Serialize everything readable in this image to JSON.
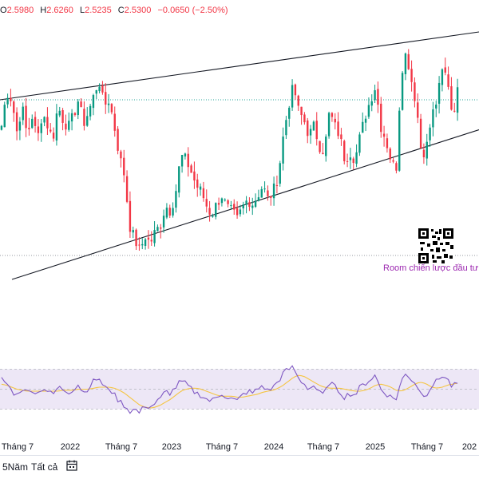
{
  "legend": {
    "o_label": "O",
    "o_value": "2.5980",
    "h_label": "H",
    "h_value": "2.6260",
    "l_label": "L",
    "l_value": "2.5235",
    "c_label": "C",
    "c_value": "2.5300",
    "change": "−0.0650 (−2.50%)"
  },
  "annotation": {
    "room_text": "Room chiến lược đầu tư hà"
  },
  "toolbar": {
    "range_5y": "5Năm",
    "range_all": "Tất cả",
    "calendar_icon": "calendar-icon"
  },
  "colors": {
    "up": "#089981",
    "down": "#f23645",
    "rsi": "#7e57c2",
    "rsi_ma": "#f5c542",
    "band": "#ede7f6",
    "dotted": "#26a69a"
  },
  "chart_data": {
    "type": "candlestick",
    "ylim": [
      1.7,
      3.0
    ],
    "rsi_ylim": [
      20,
      80
    ],
    "x_ticks": [
      "Tháng 7",
      "2022",
      "Tháng 7",
      "2023",
      "Tháng 7",
      "2024",
      "Tháng 7",
      "2025",
      "Tháng 7",
      "202"
    ],
    "price_path": [
      2.45,
      2.62,
      2.58,
      2.42,
      2.55,
      2.4,
      2.5,
      2.38,
      2.52,
      2.45,
      2.38,
      2.55,
      2.48,
      2.44,
      2.5,
      2.58,
      2.46,
      2.52,
      2.6,
      2.68,
      2.55,
      2.58,
      2.45,
      2.3,
      2.2,
      1.95,
      1.88,
      1.82,
      1.9,
      1.86,
      1.92,
      1.95,
      2.05,
      2.02,
      2.12,
      2.3,
      2.28,
      2.22,
      2.15,
      2.12,
      2.05,
      2.0,
      2.06,
      2.1,
      2.04,
      2.02,
      1.98,
      2.04,
      2.08,
      2.06,
      2.1,
      2.15,
      2.08,
      2.12,
      2.2,
      2.4,
      2.55,
      2.65,
      2.52,
      2.48,
      2.4,
      2.45,
      2.35,
      2.32,
      2.52,
      2.45,
      2.4,
      2.28,
      2.32,
      2.28,
      2.4,
      2.5,
      2.58,
      2.65,
      2.45,
      2.38,
      2.28,
      2.22,
      2.72,
      2.82,
      2.68,
      2.55,
      2.3,
      2.35,
      2.5,
      2.58,
      2.72,
      2.7,
      2.5,
      2.62
    ],
    "rsi_path": [
      60,
      56,
      48,
      44,
      52,
      46,
      50,
      45,
      52,
      48,
      44,
      52,
      50,
      47,
      50,
      55,
      46,
      52,
      58,
      62,
      50,
      52,
      44,
      38,
      34,
      28,
      30,
      26,
      34,
      32,
      36,
      40,
      48,
      46,
      52,
      58,
      55,
      50,
      46,
      44,
      40,
      38,
      42,
      46,
      42,
      40,
      38,
      44,
      48,
      46,
      50,
      54,
      48,
      52,
      58,
      66,
      70,
      72,
      60,
      56,
      50,
      54,
      46,
      44,
      58,
      52,
      48,
      42,
      46,
      44,
      52,
      56,
      60,
      64,
      50,
      46,
      42,
      40,
      58,
      66,
      60,
      55,
      44,
      46,
      54,
      58,
      64,
      60,
      52,
      56
    ],
    "rsi_ma_path": [
      55,
      54,
      52,
      50,
      49,
      48,
      48,
      48,
      48,
      48,
      48,
      48,
      49,
      49,
      49,
      50,
      50,
      50,
      51,
      52,
      52,
      52,
      51,
      49,
      46,
      42,
      38,
      34,
      32,
      31,
      32,
      34,
      37,
      40,
      44,
      48,
      50,
      51,
      51,
      50,
      48,
      46,
      44,
      43,
      43,
      43,
      42,
      42,
      43,
      44,
      45,
      47,
      48,
      49,
      51,
      54,
      58,
      62,
      64,
      63,
      60,
      57,
      54,
      52,
      51,
      51,
      51,
      50,
      49,
      48,
      48,
      49,
      51,
      54,
      55,
      54,
      52,
      49,
      48,
      50,
      53,
      56,
      57,
      55,
      52,
      51,
      52,
      54,
      55,
      56
    ],
    "channel": {
      "upper": [
        2.58,
        2.92
      ],
      "lower": [
        1.68,
        2.43
      ]
    },
    "dotted_levels": [
      2.58,
      1.8
    ]
  }
}
